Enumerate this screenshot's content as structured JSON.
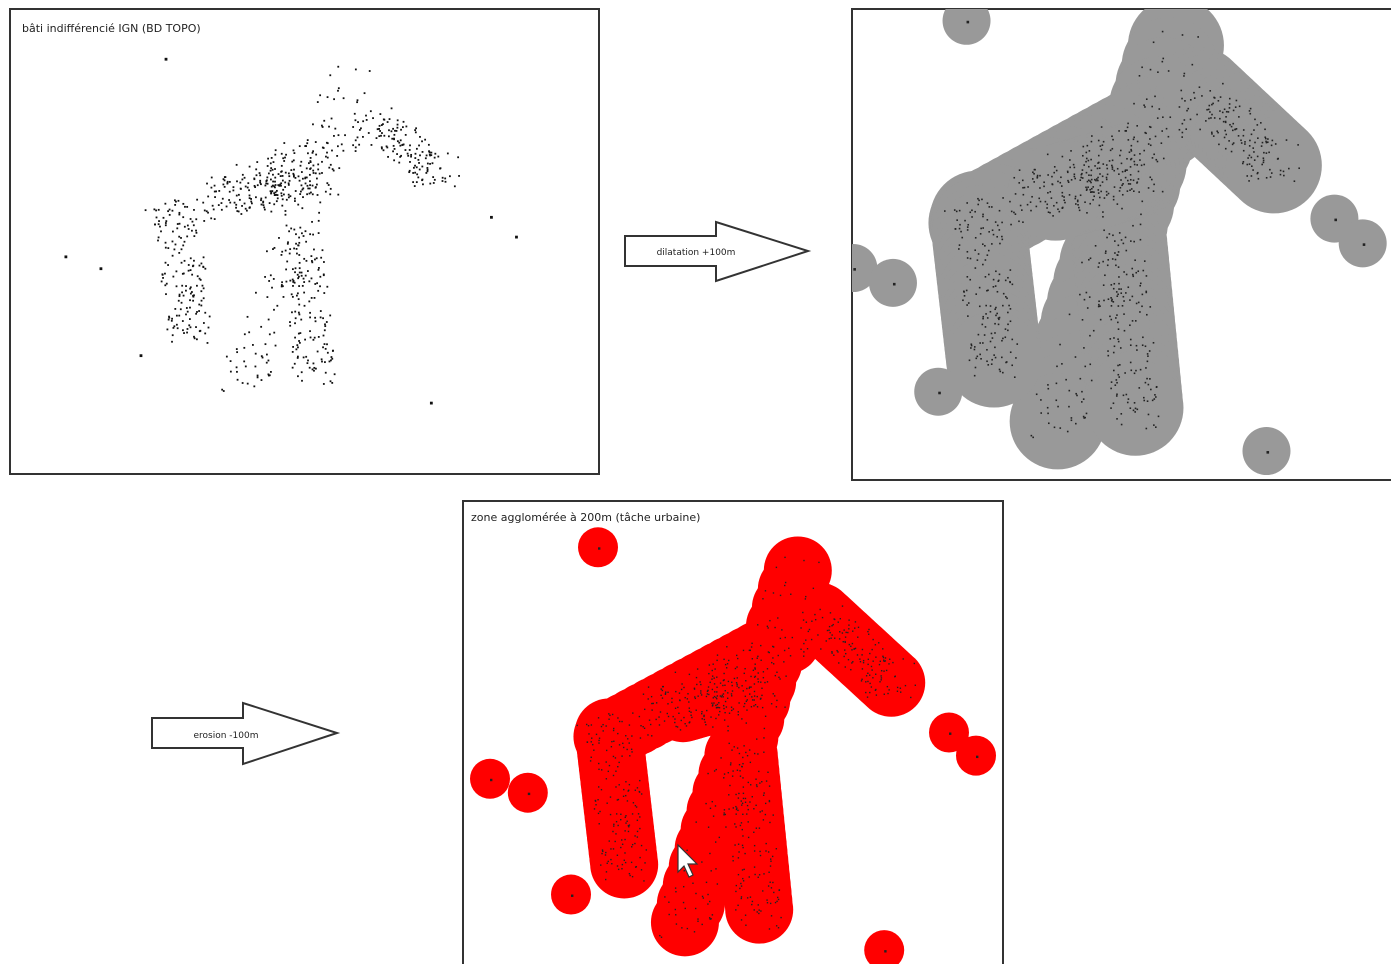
{
  "panels": [
    {
      "label": "bâti indifférencié IGN (BD TOPO)"
    },
    {
      "label": "zone agglomérée à 200m (tâche urbaine)"
    }
  ],
  "arrows": [
    {
      "label": "dilatation +100m"
    },
    {
      "label": "erosion -100m"
    }
  ]
}
